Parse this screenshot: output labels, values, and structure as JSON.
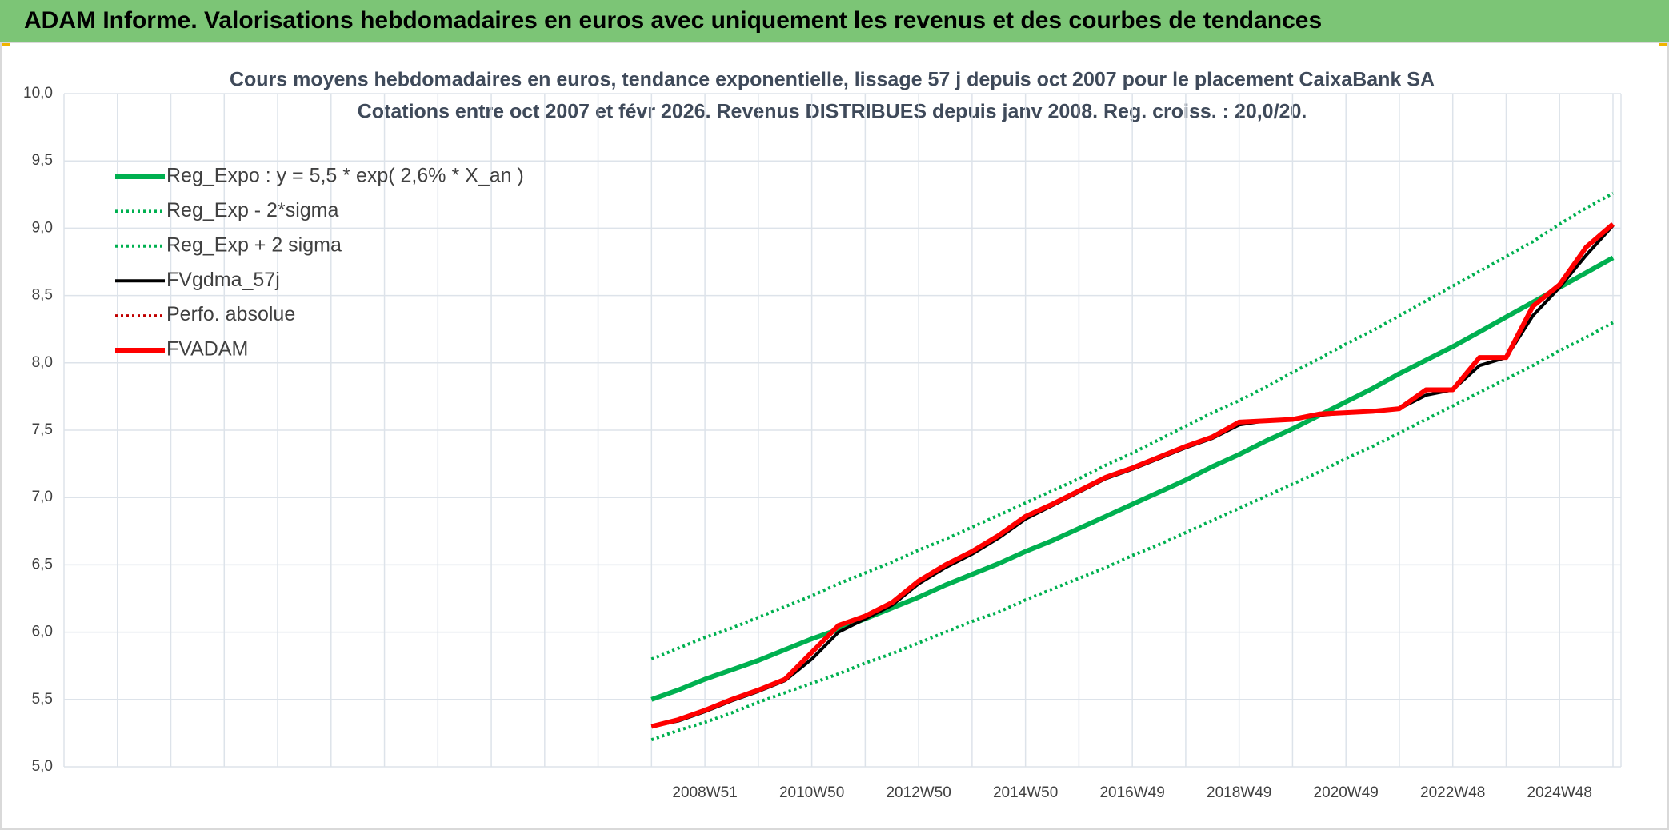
{
  "header": {
    "title": "ADAM Informe. Valorisations hebdomadaires en euros avec uniquement les revenus et des courbes de tendances"
  },
  "chart_data": {
    "type": "line",
    "title": "Cours moyens hebdomadaires en euros, tendance exponentielle, lissage 57 j depuis oct 2007 pour le placement CaixaBank SA",
    "subtitle": "Cotations entre oct 2007 et févr 2026. Revenus DISTRIBUES depuis janv 2008. Reg. croiss. : 20,0/20.",
    "categories": [
      null,
      null,
      null,
      null,
      null,
      null,
      null,
      null,
      null,
      null,
      null,
      null,
      null,
      null,
      null,
      null,
      null,
      null,
      null,
      null,
      null,
      null,
      null,
      null,
      "2008W51",
      null,
      null,
      null,
      "2010W50",
      null,
      null,
      null,
      "2012W50",
      null,
      null,
      null,
      "2014W50",
      null,
      null,
      null,
      "2016W49",
      null,
      null,
      null,
      "2018W49",
      null,
      null,
      null,
      "2020W49",
      null,
      null,
      null,
      "2022W48",
      null,
      null,
      null,
      "2024W48",
      null,
      null
    ],
    "ylim": [
      5,
      10
    ],
    "yticks": [
      {
        "value": 5,
        "label": "5,0"
      },
      {
        "value": 5.5,
        "label": "5,5"
      },
      {
        "value": 6,
        "label": "6,0"
      },
      {
        "value": 6.5,
        "label": "6,5"
      },
      {
        "value": 7,
        "label": "7,0"
      },
      {
        "value": 7.5,
        "label": "7,5"
      },
      {
        "value": 8,
        "label": "8,0"
      },
      {
        "value": 8.5,
        "label": "8,5"
      },
      {
        "value": 9,
        "label": "9,0"
      },
      {
        "value": 9.5,
        "label": "9,5"
      },
      {
        "value": 10,
        "label": "10,0"
      }
    ],
    "grid": true,
    "legend": "upper left",
    "series": [
      {
        "name": "Reg_Expo : y = 5,5 * exp( 2,6% *  X_an )",
        "color": "#00b050",
        "style": "solid",
        "width": 6,
        "values": [
          null,
          null,
          null,
          null,
          null,
          null,
          null,
          null,
          null,
          null,
          null,
          null,
          null,
          null,
          null,
          null,
          null,
          null,
          null,
          null,
          null,
          null,
          5.5,
          5.57,
          5.65,
          5.72,
          5.79,
          5.87,
          5.95,
          6.02,
          6.1,
          6.18,
          6.26,
          6.35,
          6.43,
          6.51,
          6.6,
          6.68,
          6.77,
          6.86,
          6.95,
          7.04,
          7.13,
          7.23,
          7.32,
          7.42,
          7.51,
          7.61,
          7.71,
          7.81,
          7.92,
          8.02,
          8.12,
          8.23,
          8.34,
          8.45,
          8.56,
          8.67,
          8.78
        ]
      },
      {
        "name": "Reg_Exp - 2*sigma",
        "color": "#00b050",
        "style": "dotted",
        "width": 4,
        "values": [
          null,
          null,
          null,
          null,
          null,
          null,
          null,
          null,
          null,
          null,
          null,
          null,
          null,
          null,
          null,
          null,
          null,
          null,
          null,
          null,
          null,
          null,
          5.2,
          5.27,
          5.33,
          5.4,
          5.48,
          5.55,
          5.62,
          5.69,
          5.77,
          5.84,
          5.92,
          6.0,
          6.08,
          6.15,
          6.24,
          6.32,
          6.4,
          6.48,
          6.57,
          6.65,
          6.74,
          6.83,
          6.92,
          7.01,
          7.1,
          7.19,
          7.29,
          7.38,
          7.48,
          7.58,
          7.68,
          7.78,
          7.88,
          7.98,
          8.09,
          8.19,
          8.3
        ]
      },
      {
        "name": "Reg_Exp + 2 sigma",
        "color": "#00b050",
        "style": "dotted",
        "width": 4,
        "values": [
          null,
          null,
          null,
          null,
          null,
          null,
          null,
          null,
          null,
          null,
          null,
          null,
          null,
          null,
          null,
          null,
          null,
          null,
          null,
          null,
          null,
          null,
          5.8,
          5.88,
          5.96,
          6.03,
          6.11,
          6.19,
          6.27,
          6.36,
          6.44,
          6.52,
          6.61,
          6.69,
          6.78,
          6.87,
          6.96,
          7.05,
          7.14,
          7.24,
          7.33,
          7.43,
          7.53,
          7.63,
          7.72,
          7.82,
          7.93,
          8.03,
          8.14,
          8.24,
          8.35,
          8.46,
          8.57,
          8.68,
          8.79,
          8.9,
          9.03,
          9.15,
          9.26
        ]
      },
      {
        "name": "FVgdma_57j",
        "color": "#000000",
        "style": "solid",
        "width": 4,
        "values": [
          null,
          null,
          null,
          null,
          null,
          null,
          null,
          null,
          null,
          null,
          null,
          null,
          null,
          null,
          null,
          null,
          null,
          null,
          null,
          null,
          null,
          null,
          5.3,
          5.34,
          5.41,
          5.49,
          5.56,
          5.64,
          5.8,
          6.0,
          6.1,
          6.2,
          6.36,
          6.48,
          6.58,
          6.7,
          6.84,
          6.94,
          7.04,
          7.14,
          7.21,
          7.29,
          7.37,
          7.44,
          7.54,
          7.57,
          7.58,
          7.61,
          7.63,
          7.64,
          7.66,
          7.76,
          7.8,
          7.98,
          8.04,
          8.35,
          8.56,
          8.8,
          9.02
        ]
      },
      {
        "name": "Perfo. absolue",
        "color": "#c00000",
        "style": "dotted",
        "width": 3,
        "values": [
          null,
          null,
          null,
          null,
          null,
          null,
          null,
          null,
          null,
          null,
          null,
          null,
          null,
          null,
          null,
          null,
          null,
          null,
          null,
          null,
          null,
          null,
          5.3,
          5.35,
          5.42,
          5.5,
          5.57,
          5.65,
          5.85,
          6.05,
          6.12,
          6.22,
          6.38,
          6.5,
          6.6,
          6.72,
          6.86,
          6.95,
          7.05,
          7.15,
          7.22,
          7.3,
          7.38,
          7.45,
          7.56,
          7.57,
          7.58,
          7.62,
          7.63,
          7.64,
          7.66,
          7.8,
          7.8,
          8.04,
          8.04,
          8.42,
          8.58,
          8.86,
          9.03
        ]
      },
      {
        "name": "FVADAM",
        "color": "#ff0000",
        "style": "solid",
        "width": 6,
        "values": [
          null,
          null,
          null,
          null,
          null,
          null,
          null,
          null,
          null,
          null,
          null,
          null,
          null,
          null,
          null,
          null,
          null,
          null,
          null,
          null,
          null,
          null,
          5.3,
          5.35,
          5.42,
          5.5,
          5.57,
          5.65,
          5.85,
          6.05,
          6.12,
          6.22,
          6.38,
          6.5,
          6.6,
          6.72,
          6.86,
          6.95,
          7.05,
          7.15,
          7.22,
          7.3,
          7.38,
          7.45,
          7.56,
          7.57,
          7.58,
          7.62,
          7.63,
          7.64,
          7.66,
          7.8,
          7.8,
          8.04,
          8.04,
          8.42,
          8.58,
          8.86,
          9.03
        ]
      }
    ]
  }
}
